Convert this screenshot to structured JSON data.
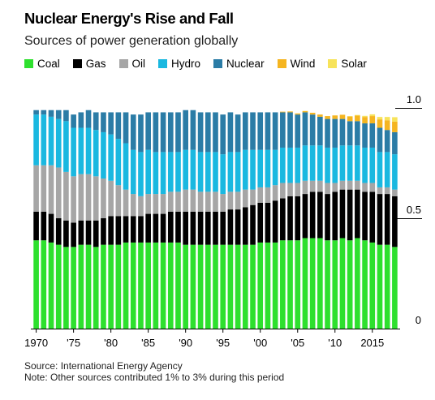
{
  "title": "Nuclear Energy's Rise and Fall",
  "subtitle": "Sources of power generation globally",
  "source": "Source: International Energy Agency",
  "note": "Note: Other sources contributed 1% to 3% during this period",
  "chart_data": {
    "type": "bar",
    "stacked": true,
    "x": [
      1970,
      1971,
      1972,
      1973,
      1974,
      1975,
      1976,
      1977,
      1978,
      1979,
      1980,
      1981,
      1982,
      1983,
      1984,
      1985,
      1986,
      1987,
      1988,
      1989,
      1990,
      1991,
      1992,
      1993,
      1994,
      1995,
      1996,
      1997,
      1998,
      1999,
      2000,
      2001,
      2002,
      2003,
      2004,
      2005,
      2006,
      2007,
      2008,
      2009,
      2010,
      2011,
      2012,
      2013,
      2014,
      2015,
      2016,
      2017,
      2018
    ],
    "x_tick_values": [
      1970,
      1975,
      1980,
      1985,
      1990,
      1995,
      2000,
      2005,
      2010,
      2015
    ],
    "x_tick_labels": [
      "1970",
      "'75",
      "'80",
      "'85",
      "'90",
      "'95",
      "'00",
      "'05",
      "'10",
      "2015"
    ],
    "ylim": [
      0,
      1.0
    ],
    "y_tick_values": [
      1.0,
      0.5,
      0
    ],
    "y_tick_labels": [
      "1.0",
      "0.5",
      "0"
    ],
    "legend_position": "top",
    "series": [
      {
        "name": "Coal",
        "color": "#2ee02e",
        "values": [
          0.4,
          0.4,
          0.39,
          0.38,
          0.37,
          0.37,
          0.38,
          0.38,
          0.37,
          0.38,
          0.38,
          0.38,
          0.39,
          0.39,
          0.39,
          0.39,
          0.39,
          0.39,
          0.39,
          0.39,
          0.38,
          0.38,
          0.38,
          0.38,
          0.38,
          0.38,
          0.38,
          0.38,
          0.38,
          0.38,
          0.39,
          0.39,
          0.39,
          0.4,
          0.4,
          0.4,
          0.41,
          0.41,
          0.41,
          0.4,
          0.4,
          0.41,
          0.4,
          0.41,
          0.4,
          0.39,
          0.38,
          0.38,
          0.37
        ]
      },
      {
        "name": "Gas",
        "color": "#000000",
        "values": [
          0.13,
          0.13,
          0.13,
          0.12,
          0.12,
          0.11,
          0.11,
          0.11,
          0.12,
          0.12,
          0.13,
          0.13,
          0.12,
          0.12,
          0.12,
          0.13,
          0.13,
          0.13,
          0.14,
          0.14,
          0.15,
          0.15,
          0.15,
          0.15,
          0.15,
          0.15,
          0.16,
          0.16,
          0.17,
          0.18,
          0.18,
          0.18,
          0.19,
          0.19,
          0.2,
          0.2,
          0.2,
          0.21,
          0.21,
          0.21,
          0.22,
          0.22,
          0.23,
          0.22,
          0.22,
          0.23,
          0.23,
          0.23,
          0.23
        ]
      },
      {
        "name": "Oil",
        "color": "#a6a6a6",
        "values": [
          0.21,
          0.21,
          0.22,
          0.23,
          0.22,
          0.21,
          0.21,
          0.21,
          0.2,
          0.18,
          0.16,
          0.14,
          0.12,
          0.1,
          0.09,
          0.09,
          0.09,
          0.09,
          0.09,
          0.09,
          0.1,
          0.1,
          0.09,
          0.09,
          0.09,
          0.08,
          0.08,
          0.08,
          0.08,
          0.07,
          0.07,
          0.07,
          0.07,
          0.07,
          0.06,
          0.06,
          0.06,
          0.05,
          0.05,
          0.05,
          0.04,
          0.04,
          0.04,
          0.04,
          0.04,
          0.04,
          0.03,
          0.03,
          0.03
        ]
      },
      {
        "name": "Hydro",
        "color": "#1ab8e0",
        "values": [
          0.23,
          0.23,
          0.22,
          0.22,
          0.23,
          0.22,
          0.21,
          0.21,
          0.21,
          0.21,
          0.21,
          0.21,
          0.21,
          0.2,
          0.2,
          0.2,
          0.19,
          0.19,
          0.18,
          0.18,
          0.18,
          0.18,
          0.18,
          0.18,
          0.18,
          0.18,
          0.18,
          0.18,
          0.18,
          0.18,
          0.17,
          0.17,
          0.16,
          0.16,
          0.16,
          0.16,
          0.16,
          0.16,
          0.16,
          0.16,
          0.16,
          0.16,
          0.16,
          0.16,
          0.16,
          0.16,
          0.16,
          0.16,
          0.16
        ]
      },
      {
        "name": "Nuclear",
        "color": "#2b7ca6",
        "values": [
          0.02,
          0.02,
          0.03,
          0.04,
          0.05,
          0.06,
          0.07,
          0.08,
          0.08,
          0.09,
          0.1,
          0.12,
          0.14,
          0.16,
          0.17,
          0.17,
          0.18,
          0.18,
          0.18,
          0.18,
          0.18,
          0.18,
          0.18,
          0.18,
          0.18,
          0.18,
          0.18,
          0.17,
          0.17,
          0.17,
          0.17,
          0.17,
          0.17,
          0.16,
          0.16,
          0.15,
          0.15,
          0.14,
          0.13,
          0.13,
          0.13,
          0.12,
          0.11,
          0.11,
          0.11,
          0.11,
          0.11,
          0.1,
          0.1
        ]
      },
      {
        "name": "Wind",
        "color": "#f5b520",
        "values": [
          0,
          0,
          0,
          0,
          0,
          0,
          0,
          0,
          0,
          0,
          0,
          0,
          0,
          0,
          0,
          0,
          0,
          0,
          0,
          0,
          0,
          0,
          0,
          0,
          0,
          0,
          0,
          0,
          0,
          0,
          0,
          0,
          0,
          0.003,
          0.004,
          0.005,
          0.006,
          0.008,
          0.01,
          0.013,
          0.016,
          0.019,
          0.021,
          0.025,
          0.029,
          0.033,
          0.038,
          0.044,
          0.048
        ]
      },
      {
        "name": "Solar",
        "color": "#f7e35a",
        "values": [
          0,
          0,
          0,
          0,
          0,
          0,
          0,
          0,
          0,
          0,
          0,
          0,
          0,
          0,
          0,
          0,
          0,
          0,
          0,
          0,
          0,
          0,
          0,
          0,
          0,
          0,
          0,
          0,
          0,
          0,
          0,
          0,
          0,
          0,
          0,
          0,
          0,
          0,
          0,
          0,
          0,
          0,
          0.002,
          0.003,
          0.005,
          0.008,
          0.011,
          0.015,
          0.02
        ]
      }
    ]
  }
}
